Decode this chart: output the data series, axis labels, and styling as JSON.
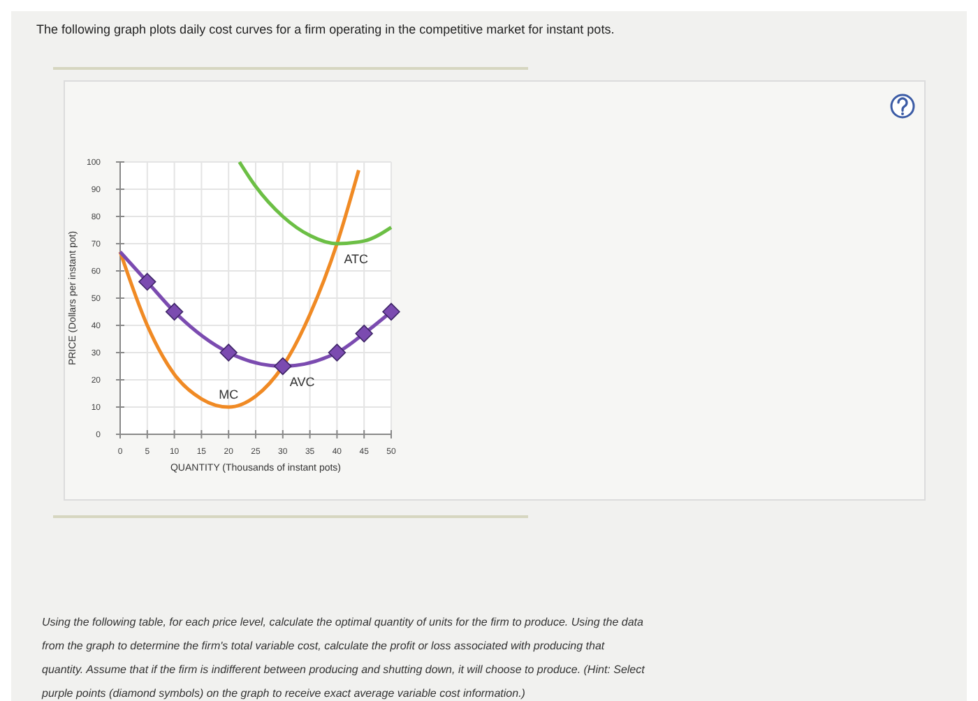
{
  "chart_data": {
    "type": "line",
    "title": "The following graph plots daily cost curves for a firm operating in the competitive market for instant pots.",
    "xlabel": "QUANTITY (Thousands of instant pots)",
    "ylabel": "PRICE (Dollars per instant pot)",
    "xlim": [
      0,
      50
    ],
    "xticks": [
      0,
      5,
      10,
      15,
      20,
      25,
      30,
      35,
      40,
      45,
      50
    ],
    "ylim": [
      0,
      100
    ],
    "yticks": [
      0,
      10,
      20,
      30,
      40,
      50,
      60,
      70,
      80,
      90,
      100
    ],
    "grid": true,
    "legend": false,
    "series": [
      {
        "name": "MC",
        "color": "#f08a24",
        "marker": "none",
        "x": [
          0,
          5,
          10,
          15,
          20,
          25,
          30,
          35,
          40,
          44
        ],
        "values": [
          67,
          40,
          22,
          13,
          10,
          14,
          25,
          44,
          70,
          97
        ]
      },
      {
        "name": "AVC",
        "color": "#7b4bb0",
        "marker": "none",
        "x": [
          0,
          5,
          10,
          20,
          30,
          40,
          45,
          50
        ],
        "values": [
          67,
          56,
          45,
          30,
          25,
          30,
          37,
          45
        ]
      },
      {
        "type": "scatter",
        "color": "#7b4bb0",
        "marker": "diamond",
        "x": [
          5,
          10,
          20,
          30,
          40,
          45,
          50
        ],
        "values": [
          56,
          45,
          30,
          25,
          30,
          37,
          45
        ]
      },
      {
        "name": "ATC",
        "color": "#6cbf45",
        "marker": "none",
        "x": [
          22,
          25,
          30,
          35,
          40,
          45,
          50
        ],
        "values": [
          100,
          91,
          80,
          73,
          70,
          71,
          76
        ]
      }
    ],
    "annotations": [
      "Using the following table, for each price level, calculate the optimal quantity of units for the firm to produce. Using the data from the graph to determine the firm's total variable cost, calculate the profit or loss associated with producing that quantity. Assume that if the firm is indifferent between producing and shutting down, it will choose to produce. (Hint: Select purple points (diamond symbols) on the graph to receive exact average variable cost information.)"
    ]
  }
}
